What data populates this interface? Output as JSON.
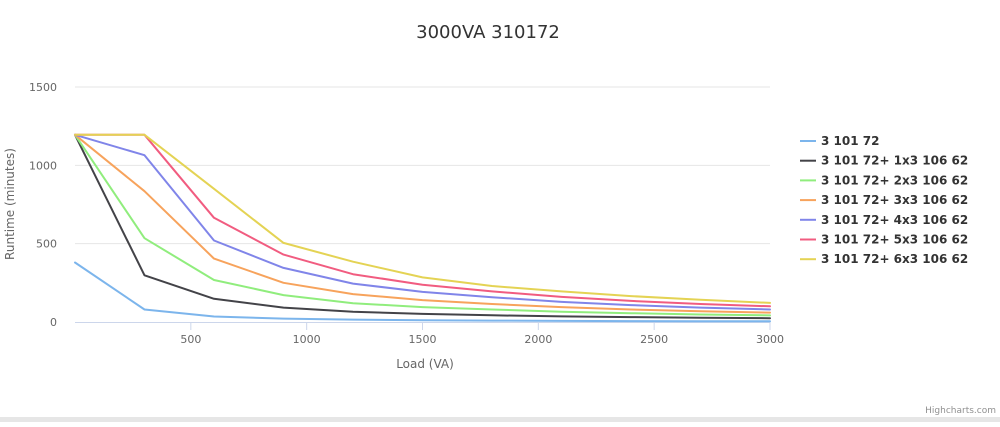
{
  "chart_data": {
    "type": "line",
    "title": "3000VA 310172",
    "xlabel": "Load (VA)",
    "ylabel": "Runtime (minutes)",
    "xlim": [
      0,
      3000
    ],
    "ylim": [
      0,
      1500
    ],
    "x_ticks": [
      500,
      1000,
      1500,
      2000,
      2500,
      3000
    ],
    "y_ticks": [
      0,
      500,
      1000,
      1500
    ],
    "grid": true,
    "legend_position": "right",
    "series": [
      {
        "name": "3 101 72",
        "color": "#7cb5ec",
        "points": [
          [
            0,
            380
          ],
          [
            300,
            80
          ],
          [
            600,
            35
          ],
          [
            900,
            22
          ],
          [
            1200,
            15
          ],
          [
            1500,
            11
          ],
          [
            1800,
            9
          ],
          [
            2100,
            7
          ],
          [
            2400,
            6
          ],
          [
            2700,
            5
          ],
          [
            3000,
            5
          ]
        ]
      },
      {
        "name": "3 101 72+ 1x3 106 62",
        "color": "#434348",
        "points": [
          [
            0,
            1195
          ],
          [
            300,
            298
          ],
          [
            600,
            148
          ],
          [
            900,
            92
          ],
          [
            1200,
            66
          ],
          [
            1500,
            52
          ],
          [
            1800,
            43
          ],
          [
            2100,
            36
          ],
          [
            2400,
            31
          ],
          [
            2700,
            27
          ],
          [
            3000,
            24
          ]
        ]
      },
      {
        "name": "3 101 72+ 2x3 106 62",
        "color": "#90ed7d",
        "points": [
          [
            0,
            1195
          ],
          [
            300,
            535
          ],
          [
            600,
            268
          ],
          [
            900,
            172
          ],
          [
            1200,
            120
          ],
          [
            1500,
            95
          ],
          [
            1800,
            80
          ],
          [
            2100,
            66
          ],
          [
            2400,
            56
          ],
          [
            2700,
            48
          ],
          [
            3000,
            42
          ]
        ]
      },
      {
        "name": "3 101 72+ 3x3 106 62",
        "color": "#f7a35c",
        "points": [
          [
            0,
            1195
          ],
          [
            300,
            835
          ],
          [
            600,
            405
          ],
          [
            900,
            250
          ],
          [
            1200,
            178
          ],
          [
            1500,
            140
          ],
          [
            1800,
            115
          ],
          [
            2100,
            95
          ],
          [
            2400,
            80
          ],
          [
            2700,
            68
          ],
          [
            3000,
            60
          ]
        ]
      },
      {
        "name": "3 101 72+ 4x3 106 62",
        "color": "#8085e9",
        "points": [
          [
            0,
            1195
          ],
          [
            300,
            1065
          ],
          [
            600,
            520
          ],
          [
            900,
            345
          ],
          [
            1200,
            245
          ],
          [
            1500,
            192
          ],
          [
            1800,
            158
          ],
          [
            2100,
            128
          ],
          [
            2400,
            108
          ],
          [
            2700,
            92
          ],
          [
            3000,
            80
          ]
        ]
      },
      {
        "name": "3 101 72+ 5x3 106 62",
        "color": "#f15c80",
        "points": [
          [
            0,
            1195
          ],
          [
            300,
            1195
          ],
          [
            600,
            665
          ],
          [
            900,
            430
          ],
          [
            1200,
            305
          ],
          [
            1500,
            238
          ],
          [
            1800,
            195
          ],
          [
            2100,
            160
          ],
          [
            2400,
            135
          ],
          [
            2700,
            115
          ],
          [
            3000,
            100
          ]
        ]
      },
      {
        "name": "3 101 72+ 6x3 106 62",
        "color": "#e4d354",
        "points": [
          [
            0,
            1195
          ],
          [
            300,
            1195
          ],
          [
            600,
            850
          ],
          [
            900,
            505
          ],
          [
            1200,
            385
          ],
          [
            1500,
            285
          ],
          [
            1800,
            230
          ],
          [
            2100,
            195
          ],
          [
            2400,
            165
          ],
          [
            2700,
            142
          ],
          [
            3000,
            122
          ]
        ]
      }
    ],
    "credits": "Highcharts.com"
  }
}
